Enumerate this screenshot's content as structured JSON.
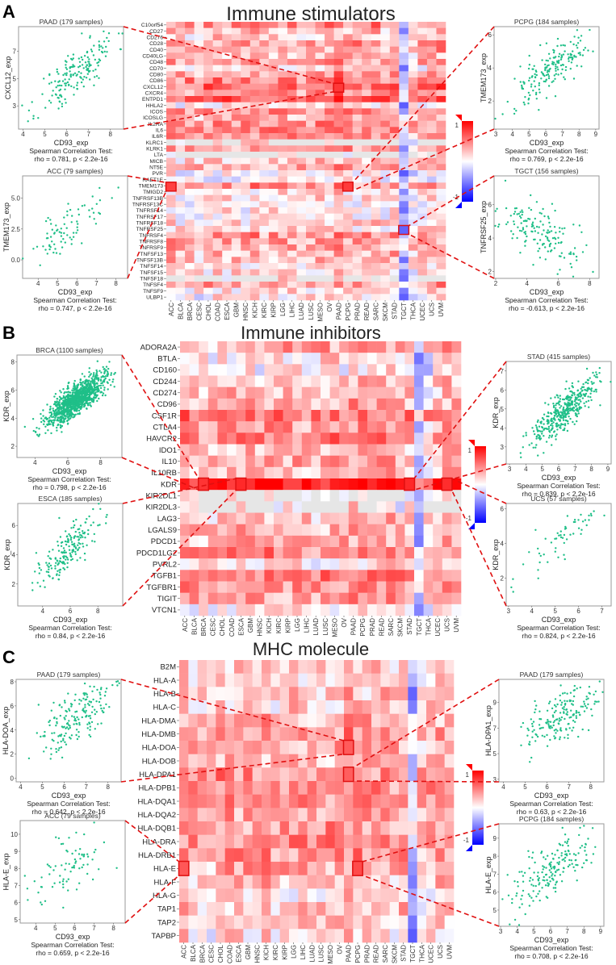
{
  "chart_data": [
    {
      "type": "heatmap",
      "panel_letter": "A",
      "title": "Immune stimulators",
      "color_range": [
        -1,
        1
      ],
      "colorbar_labels": [
        "1",
        "-1"
      ],
      "colors": {
        "high": "#ff0000",
        "mid": "#ffffff",
        "low": "#0000ff",
        "na": "#e6e6e6",
        "highlight": "#e01010",
        "point": "#1fbf88"
      },
      "columns": [
        "ACC",
        "BLCA",
        "BRCA",
        "CESC",
        "CHOL",
        "COAD",
        "ESCA",
        "GBM",
        "HNSC",
        "KICH",
        "KIRC",
        "KIRP",
        "LGG",
        "LIHC",
        "LUAD",
        "LUSC",
        "MESO",
        "OV",
        "PAAD",
        "PCPG",
        "PRAD",
        "READ",
        "SARC",
        "SKCM",
        "STAD",
        "TGCT",
        "THCA",
        "UCEC",
        "UCS",
        "UVM"
      ],
      "column_offsets": [
        0.1,
        0,
        0,
        -0.05,
        0.05,
        0.05,
        0.05,
        0.05,
        0,
        0.1,
        0,
        0.05,
        0.05,
        0.05,
        0,
        0.05,
        0.05,
        0.05,
        0.15,
        0.1,
        0.05,
        0.05,
        0.1,
        0,
        0.05,
        -0.5,
        -0.1,
        0,
        0.05,
        0.1
      ],
      "rows": [
        "C10orf54",
        "CD27",
        "CD276",
        "CD28",
        "CD40",
        "CD40LG",
        "CD48",
        "CD70",
        "CD80",
        "CD86",
        "CXCL12",
        "CXCR4",
        "ENTPD1",
        "HHLA2",
        "ICOS",
        "ICOSLG",
        "IL2RA",
        "IL6",
        "IL6R",
        "KLRC1",
        "KLRK1",
        "LTA",
        "MICB",
        "NT5E",
        "PVR",
        "RAET1E",
        "TMEM173",
        "TMIGD2",
        "TNFRSF13B",
        "TNFRSF13C",
        "TNFRSF14",
        "TNFRSF17",
        "TNFRSF18",
        "TNFRSF25",
        "TNFRSF4",
        "TNFRSF8",
        "TNFRSF9",
        "TNFSF13",
        "TNFSF13B",
        "TNFSF14",
        "TNFSF15",
        "TNFSF18",
        "TNFSF4",
        "TNFSF9",
        "ULBP1"
      ],
      "row_means": [
        0.4,
        0.2,
        0.15,
        0.35,
        0.3,
        0.2,
        0.3,
        0.1,
        0.35,
        0.45,
        0.55,
        0.4,
        0.6,
        0.05,
        0.35,
        0.25,
        0.4,
        0.4,
        0.35,
        0.1,
        0.3,
        0.05,
        0.15,
        0.3,
        0,
        -0.05,
        0.35,
        0.05,
        0.1,
        0,
        0.05,
        0.05,
        0.1,
        0.1,
        0.35,
        0.3,
        0.3,
        0.25,
        0.2,
        0.1,
        0.1,
        0.1,
        0.3,
        0.1,
        0.05
      ],
      "mostly_na_rows": [
        "KLRC1",
        "LTA",
        "TNFSF18"
      ],
      "scatters": [
        {
          "title": "PAAD (179 samples)",
          "n": 179,
          "xlabel": "CD93_exp",
          "ylabel": "CXCL12_exp",
          "xlim": [
            3.8,
            8.6
          ],
          "ylim": [
            1.3,
            8.8
          ],
          "xticks": [
            "4",
            "5",
            "6",
            "7",
            "8"
          ],
          "yticks": [
            "3",
            "5",
            "7"
          ],
          "rho": 0.781,
          "x_mean": 6.5,
          "x_sd": 0.9,
          "y_mean": 5.5,
          "y_sd": 1.5,
          "test": "Spearman Correlation Test:",
          "stats": "rho = 0.781, p < 2.2e-16",
          "linked_cell": [
            "CXCL12",
            "PAAD"
          ],
          "side": "left"
        },
        {
          "title": "ACC (79 samples)",
          "n": 79,
          "xlabel": "CD93_exp",
          "ylabel": "TMEM173_exp",
          "xlim": [
            3.2,
            8.6
          ],
          "ylim": [
            -1.5,
            6.8
          ],
          "xticks": [
            "4",
            "5",
            "6",
            "7",
            "8"
          ],
          "yticks": [
            "0.0",
            "2.5",
            "5.0"
          ],
          "rho": 0.747,
          "x_mean": 5.5,
          "x_sd": 1.0,
          "y_mean": 2.6,
          "y_sd": 1.3,
          "test": "Spearman Correlation Test:",
          "stats": "rho = 0.747, p < 2.2e-16",
          "linked_cell": [
            "TMEM173",
            "ACC"
          ],
          "side": "left"
        },
        {
          "title": "PCPG (184 samples)",
          "n": 184,
          "xlabel": "CD93_exp",
          "ylabel": "TMEM173_exp",
          "xlim": [
            2.9,
            9.2
          ],
          "ylim": [
            0.3,
            6.5
          ],
          "xticks": [
            "3",
            "4",
            "5",
            "6",
            "7",
            "8",
            "9"
          ],
          "yticks": [
            "2",
            "4",
            "6"
          ],
          "rho": 0.769,
          "x_mean": 6.2,
          "x_sd": 1.2,
          "y_mean": 3.8,
          "y_sd": 1.1,
          "test": "Spearman Correlation Test:",
          "stats": "rho = 0.769, p < 2.2e-16",
          "linked_cell": [
            "TMEM173",
            "PCPG"
          ],
          "side": "right"
        },
        {
          "title": "TGCT (156 samples)",
          "n": 156,
          "xlabel": "CD93_exp",
          "ylabel": "TNFRSF25_exp",
          "xlim": [
            1.9,
            8.6
          ],
          "ylim": [
            1.6,
            7.7
          ],
          "xticks": [
            "2",
            "4",
            "6",
            "8"
          ],
          "yticks": [
            "2",
            "4",
            "6"
          ],
          "rho": -0.613,
          "x_mean": 4.8,
          "x_sd": 1.4,
          "y_mean": 4.2,
          "y_sd": 1.1,
          "test": "Spearman Correlation Test:",
          "stats": "rho = -0.613, p < 2.2e-16",
          "linked_cell": [
            "TNFRSF25",
            "TGCT"
          ],
          "side": "right"
        }
      ]
    },
    {
      "type": "heatmap",
      "panel_letter": "B",
      "title": "Immune inhibitors",
      "color_range": [
        -1,
        1
      ],
      "colorbar_labels": [
        "1",
        "-1"
      ],
      "columns": [
        "ACC",
        "BLCA",
        "BRCA",
        "CESC",
        "CHOL",
        "COAD",
        "ESCA",
        "GBM",
        "HNSC",
        "KICH",
        "KIRC",
        "KIRP",
        "LGG",
        "LIHC",
        "LUAD",
        "LUSC",
        "MESO",
        "OV",
        "PAAD",
        "PCPG",
        "PRAD",
        "READ",
        "SARC",
        "SKCM",
        "STAD",
        "TGCT",
        "THCA",
        "UCEC",
        "UCS",
        "UVM"
      ],
      "column_offsets": [
        0.1,
        0,
        0,
        -0.05,
        0.05,
        0.05,
        0.05,
        0.05,
        0,
        0.1,
        0,
        0.05,
        0.05,
        0.05,
        0,
        0.05,
        0.05,
        0.05,
        0.15,
        0.1,
        0.05,
        0.05,
        0.1,
        0,
        0.05,
        -0.5,
        -0.1,
        0,
        0.05,
        0.1
      ],
      "rows": [
        "ADORA2A",
        "BTLA",
        "CD160",
        "CD244",
        "CD274",
        "CD96",
        "CSF1R",
        "CTLA4",
        "HAVCR2",
        "IDO1",
        "IL10",
        "IL10RB",
        "KDR",
        "KIR2DL1",
        "KIR2DL3",
        "LAG3",
        "LGALS9",
        "PDCD1",
        "PDCD1LG2",
        "PVRL2",
        "TGFB1",
        "TGFBR1",
        "TIGIT",
        "VTCN1"
      ],
      "row_means": [
        0.3,
        0.1,
        0,
        0.2,
        0.2,
        0.25,
        0.5,
        0.3,
        0.45,
        0.2,
        0.3,
        0.2,
        0.85,
        0,
        0,
        0.2,
        0.25,
        0.25,
        0.45,
        0.1,
        0.45,
        0.4,
        0.3,
        0.05
      ],
      "mostly_na_rows": [
        "KIR2DL1",
        "KIR2DL3"
      ],
      "scatters": [
        {
          "title": "BRCA (1100 samples)",
          "n": 1100,
          "xlabel": "CD93_exp",
          "ylabel": "KDR_exp",
          "xlim": [
            2.9,
            9.3
          ],
          "ylim": [
            1.2,
            8.5
          ],
          "xticks": [
            "4",
            "6",
            "8"
          ],
          "yticks": [
            "2",
            "4",
            "6",
            "8"
          ],
          "rho": 0.798,
          "x_mean": 6.5,
          "x_sd": 0.9,
          "y_mean": 5.3,
          "y_sd": 0.9,
          "test": "Spearman Correlation Test:",
          "stats": "rho = 0.798, p < 2.2e-16",
          "linked_cell": [
            "KDR",
            "BRCA"
          ],
          "side": "left"
        },
        {
          "title": "ESCA (185 samples)",
          "n": 185,
          "xlabel": "CD93_exp",
          "ylabel": "KDR_exp",
          "xlim": [
            2.2,
            9.8
          ],
          "ylim": [
            0.5,
            7.5
          ],
          "xticks": [
            "4",
            "6",
            "8"
          ],
          "yticks": [
            "2",
            "4",
            "6"
          ],
          "rho": 0.84,
          "x_mean": 5.8,
          "x_sd": 1.2,
          "y_mean": 4.3,
          "y_sd": 1.2,
          "test": "Spearman Correlation Test:",
          "stats": "rho = 0.84, p < 2.2e-16",
          "linked_cell": [
            "KDR",
            "ESCA"
          ],
          "side": "left"
        },
        {
          "title": "STAD (415 samples)",
          "n": 415,
          "xlabel": "CD93_exp",
          "ylabel": "KDR_exp",
          "xlim": [
            2.8,
            9.2
          ],
          "ylim": [
            2.1,
            7.5
          ],
          "xticks": [
            "3",
            "4",
            "5",
            "6",
            "7",
            "8",
            "9"
          ],
          "yticks": [
            "3",
            "4",
            "5",
            "6",
            "7"
          ],
          "rho": 0.839,
          "x_mean": 6.3,
          "x_sd": 1.0,
          "y_mean": 4.9,
          "y_sd": 0.9,
          "test": "Spearman Correlation Test:",
          "stats": "rho = 0.839, p < 2.2e-16",
          "linked_cell": [
            "KDR",
            "STAD"
          ],
          "side": "right"
        },
        {
          "title": "UCS (57 samples)",
          "n": 57,
          "xlabel": "CD93_exp",
          "ylabel": "KDR_exp",
          "xlim": [
            2.9,
            7.4
          ],
          "ylim": [
            0.4,
            6.3
          ],
          "xticks": [
            "3",
            "4",
            "5",
            "6",
            "7"
          ],
          "yticks": [
            "2",
            "4",
            "6"
          ],
          "rho": 0.824,
          "x_mean": 5.0,
          "x_sd": 1.0,
          "y_mean": 3.9,
          "y_sd": 1.2,
          "test": "Spearman Correlation Test:",
          "stats": "rho = 0.824, p < 2.2e-16",
          "linked_cell": [
            "KDR",
            "UCS"
          ],
          "side": "right"
        }
      ]
    },
    {
      "type": "heatmap",
      "panel_letter": "C",
      "title": "MHC molecule",
      "color_range": [
        -1,
        1
      ],
      "colorbar_labels": [
        "1",
        "-1"
      ],
      "columns": [
        "ACC",
        "BLCA",
        "BRCA",
        "CESC",
        "CHOL",
        "COAD",
        "ESCA",
        "GBM",
        "HNSC",
        "KICH",
        "KIRC",
        "KIRP",
        "LGG",
        "LIHC",
        "LUAD",
        "LUSC",
        "MESO",
        "OV",
        "PAAD",
        "PCPG",
        "PRAD",
        "READ",
        "SARC",
        "SKCM",
        "STAD",
        "TGCT",
        "THCA",
        "UCEC",
        "UCS",
        "UVM"
      ],
      "column_offsets": [
        0.1,
        0,
        0,
        -0.05,
        0.05,
        0.05,
        0.05,
        0.05,
        0,
        0.1,
        0,
        0.05,
        0.05,
        0.05,
        0,
        0.05,
        0.05,
        0.05,
        0.15,
        0.1,
        0.05,
        0.05,
        0.1,
        0,
        0.05,
        -0.5,
        -0.1,
        0,
        0.05,
        0.1
      ],
      "rows": [
        "B2M",
        "HLA-A",
        "HLA-B",
        "HLA-C",
        "HLA-DMA",
        "HLA-DMB",
        "HLA-DOA",
        "HLA-DOB",
        "HLA-DPA1",
        "HLA-DPB1",
        "HLA-DQA1",
        "HLA-DQA2",
        "HLA-DQB1",
        "HLA-DRA",
        "HLA-DRB1",
        "HLA-E",
        "HLA-F",
        "HLA-G",
        "TAP1",
        "TAP2",
        "TAPBP"
      ],
      "row_means": [
        0.15,
        0.15,
        0.15,
        0.15,
        0.25,
        0.3,
        0.3,
        0.2,
        0.4,
        0.4,
        0.35,
        0.3,
        0.35,
        0.4,
        0.35,
        0.3,
        0.2,
        0.05,
        0.2,
        0.15,
        0.1
      ],
      "mostly_na_rows": [],
      "scatters": [
        {
          "title": "PAAD (179 samples)",
          "n": 179,
          "xlabel": "CD93_exp",
          "ylabel": "HLA-DOA_exp",
          "xlim": [
            3.8,
            8.6
          ],
          "ylim": [
            -0.3,
            8.2
          ],
          "xticks": [
            "4",
            "5",
            "6",
            "7",
            "8"
          ],
          "yticks": [
            "0",
            "2",
            "4",
            "6",
            "8"
          ],
          "rho": 0.642,
          "x_mean": 6.6,
          "x_sd": 0.8,
          "y_mean": 5.0,
          "y_sd": 1.4,
          "test": "Spearman Correlation Test:",
          "stats": "rho = 0.642, p < 2.2e-16",
          "linked_cell": [
            "HLA-DOA",
            "PAAD"
          ],
          "side": "left"
        },
        {
          "title": "ACC (79 samples)",
          "n": 79,
          "xlabel": "CD93_exp",
          "ylabel": "HLA-E_exp",
          "xlim": [
            3.2,
            8.6
          ],
          "ylim": [
            4.8,
            10.8
          ],
          "xticks": [
            "4",
            "5",
            "6",
            "7",
            "8"
          ],
          "yticks": [
            "5",
            "6",
            "7",
            "8",
            "9",
            "10"
          ],
          "rho": 0.659,
          "x_mean": 5.6,
          "x_sd": 1.0,
          "y_mean": 7.9,
          "y_sd": 1.2,
          "test": "Spearman Correlation Test:",
          "stats": "rho = 0.659, p < 2.2e-16",
          "linked_cell": [
            "HLA-E",
            "ACC"
          ],
          "side": "left"
        },
        {
          "title": "PAAD (179 samples)",
          "n": 179,
          "xlabel": "CD93_exp",
          "ylabel": "HLA-DPA1_exp",
          "xlim": [
            3.8,
            8.6
          ],
          "ylim": [
            2.8,
            10.8
          ],
          "xticks": [
            "4",
            "5",
            "6",
            "7",
            "8"
          ],
          "yticks": [
            "3",
            "5",
            "7",
            "9"
          ],
          "rho": 0.63,
          "x_mean": 6.6,
          "x_sd": 0.9,
          "y_mean": 7.9,
          "y_sd": 1.2,
          "test": "Spearman Correlation Test:",
          "stats": "rho = 0.63, p < 2.2e-16",
          "linked_cell": [
            "HLA-DPA1",
            "PAAD"
          ],
          "side": "right"
        },
        {
          "title": "PCPG (184 samples)",
          "n": 184,
          "xlabel": "CD93_exp",
          "ylabel": "HLA-E_exp",
          "xlim": [
            2.9,
            9.2
          ],
          "ylim": [
            4.1,
            9.8
          ],
          "xticks": [
            "3",
            "4",
            "5",
            "6",
            "7",
            "8",
            "9"
          ],
          "yticks": [
            "5",
            "6",
            "7",
            "8",
            "9"
          ],
          "rho": 0.708,
          "x_mean": 6.2,
          "x_sd": 1.2,
          "y_mean": 7.3,
          "y_sd": 1.0,
          "test": "Spearman Correlation Test:",
          "stats": "rho = 0.708, p < 2.2e-16",
          "linked_cell": [
            "HLA-E",
            "PCPG"
          ],
          "side": "right"
        }
      ]
    }
  ]
}
